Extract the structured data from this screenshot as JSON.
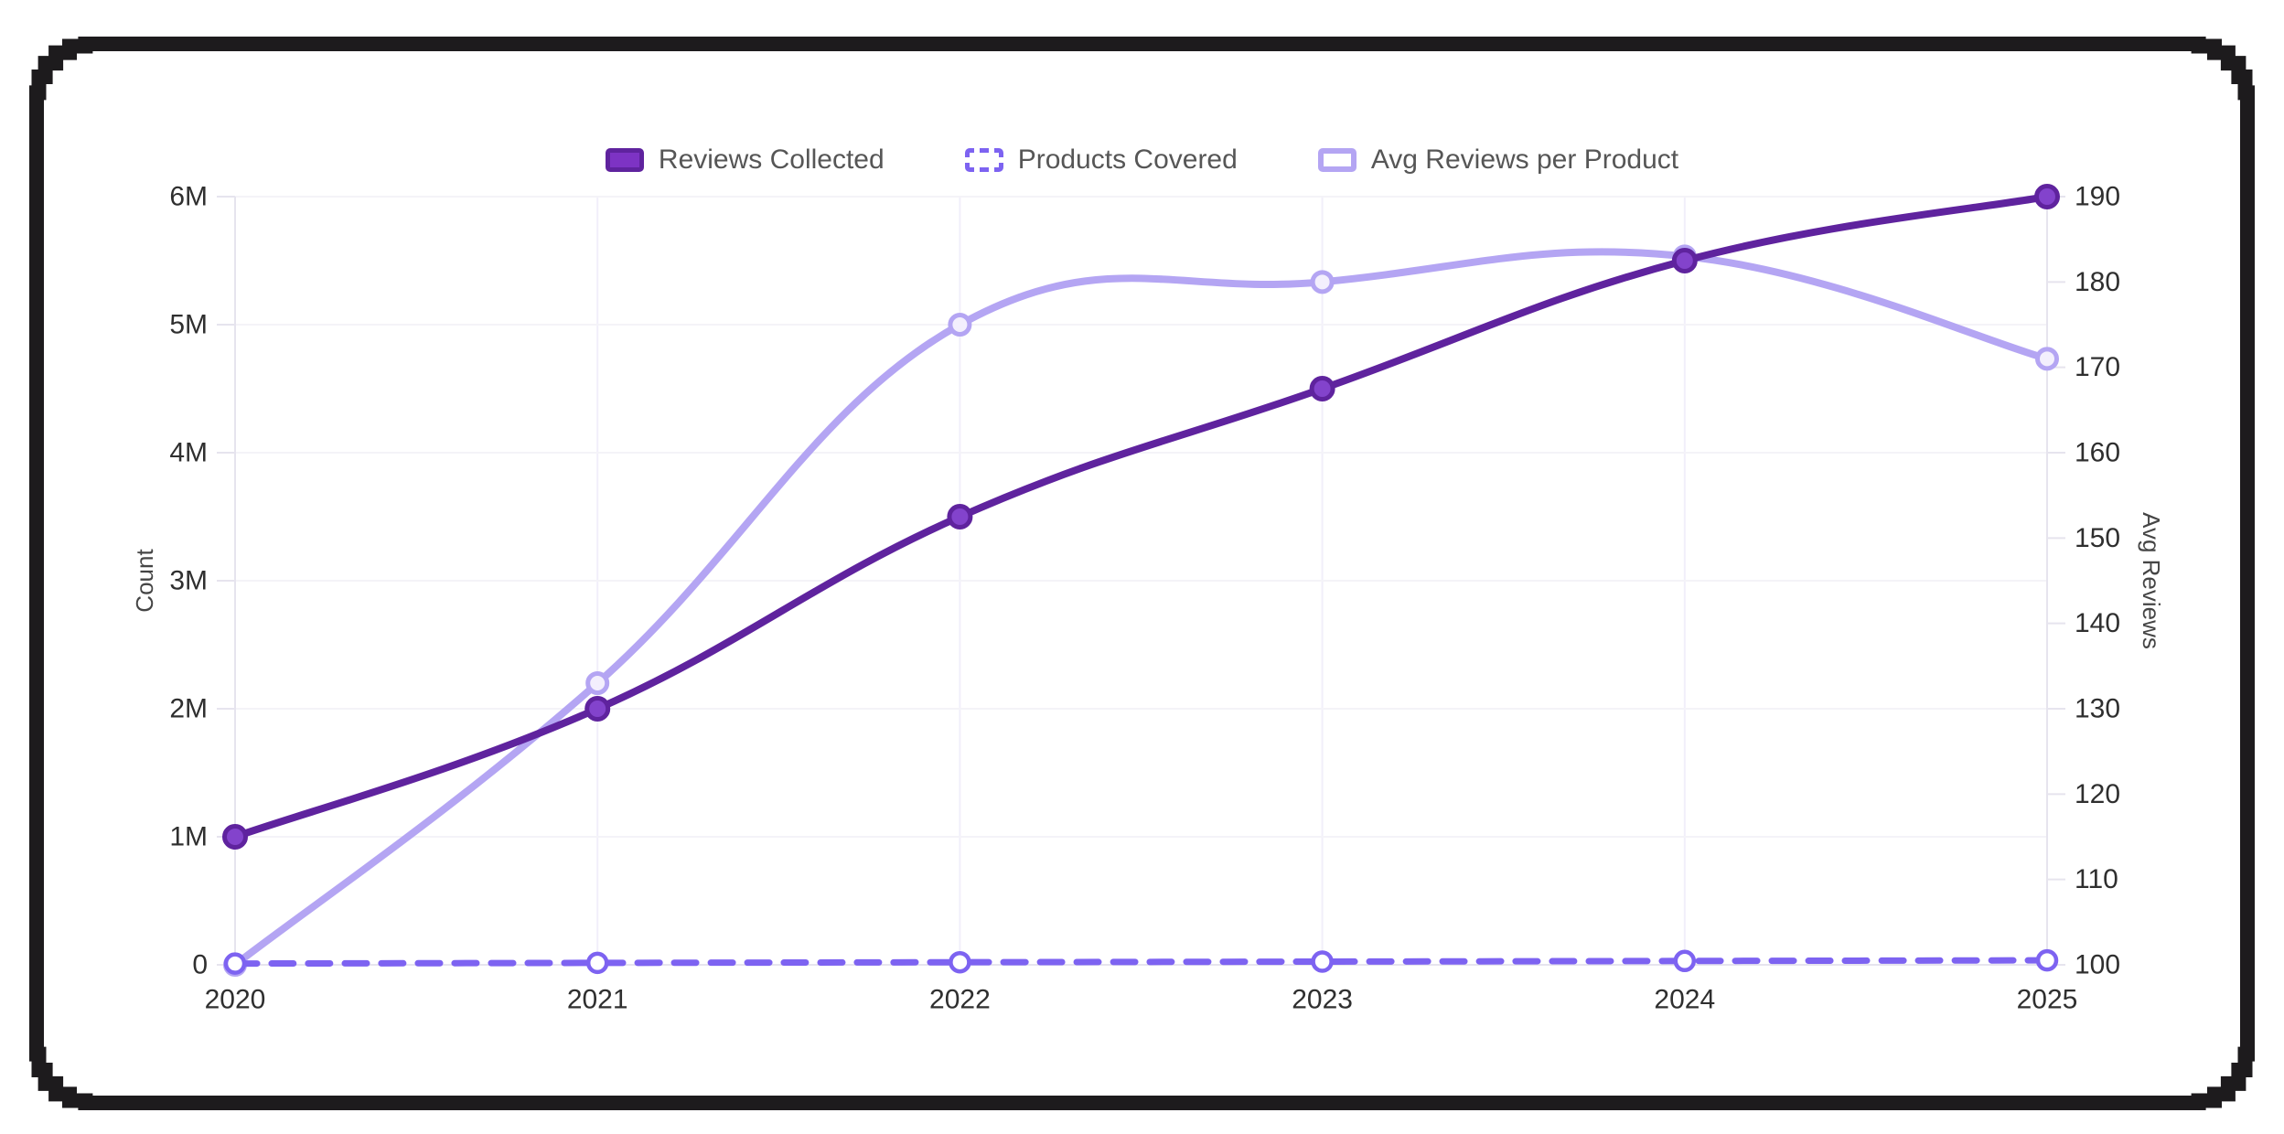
{
  "chart_data": {
    "type": "line",
    "x": [
      "2020",
      "2021",
      "2022",
      "2023",
      "2024",
      "2025"
    ],
    "series": [
      {
        "name": "Reviews Collected",
        "axis": "left",
        "style": "solid",
        "values": [
          1000000,
          2000000,
          3500000,
          4500000,
          5500000,
          6000000
        ],
        "color": "#5f239e",
        "marker_fill": "#8343cc",
        "legend_fill": "#7d33c4"
      },
      {
        "name": "Products Covered",
        "axis": "left",
        "style": "dashed",
        "values": [
          10000,
          15000,
          20000,
          25000,
          30000,
          35000
        ],
        "color": "#7d63f1",
        "marker_fill": "#ffffff",
        "legend_fill": "#ffffff"
      },
      {
        "name": "Avg Reviews per Product",
        "axis": "right",
        "style": "solid",
        "values": [
          100,
          133,
          175,
          180,
          183,
          171
        ],
        "color": "#b4a5f3",
        "marker_fill": "#f3effd",
        "legend_fill": "#ffffff"
      }
    ],
    "left_axis": {
      "title": "Count",
      "min": 0,
      "max": 6000000,
      "tick_values": [
        0,
        1000000,
        2000000,
        3000000,
        4000000,
        5000000,
        6000000
      ],
      "tick_labels": [
        "0",
        "1M",
        "2M",
        "3M",
        "4M",
        "5M",
        "6M"
      ]
    },
    "right_axis": {
      "title": "Avg Reviews",
      "min": 100,
      "max": 190,
      "tick_values": [
        100,
        110,
        120,
        130,
        140,
        150,
        160,
        170,
        180,
        190
      ],
      "tick_labels": [
        "100",
        "110",
        "120",
        "130",
        "140",
        "150",
        "160",
        "170",
        "180",
        "190"
      ]
    },
    "legend_position": "top",
    "grid": true
  },
  "theme": {
    "frame_color": "#1d1b1d",
    "background": "#ffffff",
    "grid_vertical": "#f1effa",
    "grid_horizontal": "#f4f3f8",
    "axis_line": "#e6e4ee",
    "tick_text": "#2f2f2f",
    "axis_title_text": "#454545",
    "legend_text": "#565656"
  }
}
